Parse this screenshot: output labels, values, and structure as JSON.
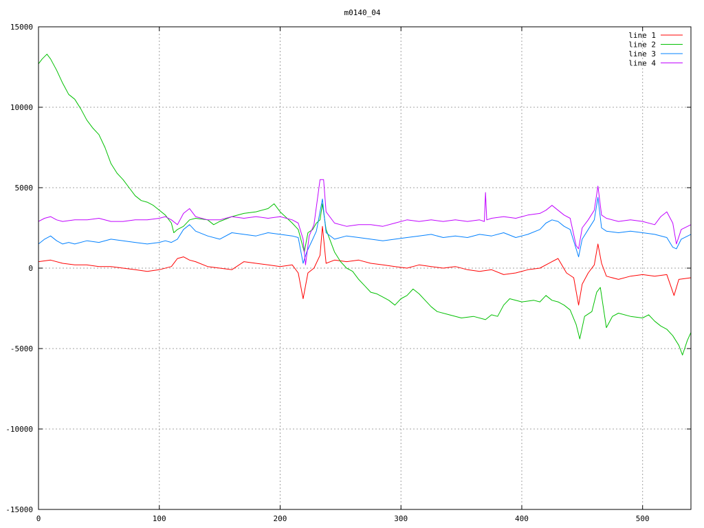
{
  "chart_data": {
    "type": "line",
    "title": "m0140_04",
    "xlim": [
      0,
      540
    ],
    "ylim": [
      -15000,
      15000
    ],
    "x_ticks": [
      0,
      100,
      200,
      300,
      400,
      500
    ],
    "y_ticks": [
      -15000,
      -10000,
      -5000,
      0,
      5000,
      10000,
      15000
    ],
    "grid": true,
    "legend_position": "top-right",
    "series": [
      {
        "name": "line 1",
        "color": "#ff0000",
        "points": [
          [
            0,
            400
          ],
          [
            10,
            500
          ],
          [
            20,
            300
          ],
          [
            30,
            200
          ],
          [
            40,
            200
          ],
          [
            50,
            100
          ],
          [
            60,
            100
          ],
          [
            70,
            0
          ],
          [
            80,
            -100
          ],
          [
            90,
            -200
          ],
          [
            100,
            -100
          ],
          [
            110,
            100
          ],
          [
            115,
            600
          ],
          [
            120,
            700
          ],
          [
            125,
            500
          ],
          [
            130,
            400
          ],
          [
            140,
            100
          ],
          [
            150,
            0
          ],
          [
            160,
            -100
          ],
          [
            170,
            400
          ],
          [
            180,
            300
          ],
          [
            190,
            200
          ],
          [
            200,
            100
          ],
          [
            210,
            200
          ],
          [
            215,
            -300
          ],
          [
            219,
            -1900
          ],
          [
            223,
            -300
          ],
          [
            228,
            0
          ],
          [
            233,
            800
          ],
          [
            235,
            2600
          ],
          [
            238,
            300
          ],
          [
            245,
            500
          ],
          [
            255,
            400
          ],
          [
            265,
            500
          ],
          [
            275,
            300
          ],
          [
            285,
            200
          ],
          [
            295,
            100
          ],
          [
            305,
            0
          ],
          [
            315,
            200
          ],
          [
            325,
            100
          ],
          [
            335,
            0
          ],
          [
            345,
            100
          ],
          [
            355,
            -100
          ],
          [
            365,
            -200
          ],
          [
            375,
            -100
          ],
          [
            385,
            -400
          ],
          [
            395,
            -300
          ],
          [
            405,
            -100
          ],
          [
            415,
            0
          ],
          [
            425,
            400
          ],
          [
            430,
            600
          ],
          [
            437,
            -300
          ],
          [
            443,
            -600
          ],
          [
            447,
            -2300
          ],
          [
            450,
            -1000
          ],
          [
            455,
            -300
          ],
          [
            460,
            200
          ],
          [
            463,
            1500
          ],
          [
            466,
            300
          ],
          [
            470,
            -500
          ],
          [
            480,
            -700
          ],
          [
            490,
            -500
          ],
          [
            500,
            -400
          ],
          [
            510,
            -500
          ],
          [
            520,
            -400
          ],
          [
            526,
            -1700
          ],
          [
            530,
            -700
          ],
          [
            540,
            -600
          ]
        ]
      },
      {
        "name": "line 2",
        "color": "#00c000",
        "points": [
          [
            0,
            12700
          ],
          [
            3,
            13000
          ],
          [
            7,
            13300
          ],
          [
            10,
            13000
          ],
          [
            15,
            12300
          ],
          [
            20,
            11500
          ],
          [
            25,
            10800
          ],
          [
            30,
            10500
          ],
          [
            35,
            9900
          ],
          [
            40,
            9200
          ],
          [
            45,
            8700
          ],
          [
            50,
            8300
          ],
          [
            55,
            7500
          ],
          [
            60,
            6500
          ],
          [
            65,
            5900
          ],
          [
            70,
            5500
          ],
          [
            75,
            5000
          ],
          [
            80,
            4500
          ],
          [
            85,
            4200
          ],
          [
            90,
            4100
          ],
          [
            95,
            3900
          ],
          [
            100,
            3600
          ],
          [
            105,
            3300
          ],
          [
            110,
            2800
          ],
          [
            112,
            2200
          ],
          [
            115,
            2400
          ],
          [
            120,
            2600
          ],
          [
            125,
            3000
          ],
          [
            130,
            3100
          ],
          [
            140,
            3000
          ],
          [
            145,
            2700
          ],
          [
            150,
            2900
          ],
          [
            160,
            3200
          ],
          [
            170,
            3400
          ],
          [
            180,
            3500
          ],
          [
            190,
            3700
          ],
          [
            195,
            4000
          ],
          [
            200,
            3500
          ],
          [
            210,
            2800
          ],
          [
            215,
            2400
          ],
          [
            220,
            1000
          ],
          [
            223,
            2200
          ],
          [
            227,
            2400
          ],
          [
            230,
            2800
          ],
          [
            233,
            3000
          ],
          [
            235,
            4000
          ],
          [
            238,
            2400
          ],
          [
            245,
            1000
          ],
          [
            250,
            400
          ],
          [
            255,
            0
          ],
          [
            260,
            -200
          ],
          [
            265,
            -700
          ],
          [
            270,
            -1100
          ],
          [
            275,
            -1500
          ],
          [
            280,
            -1600
          ],
          [
            285,
            -1800
          ],
          [
            290,
            -2000
          ],
          [
            295,
            -2300
          ],
          [
            300,
            -1900
          ],
          [
            305,
            -1700
          ],
          [
            310,
            -1300
          ],
          [
            315,
            -1600
          ],
          [
            320,
            -2000
          ],
          [
            325,
            -2400
          ],
          [
            330,
            -2700
          ],
          [
            340,
            -2900
          ],
          [
            350,
            -3100
          ],
          [
            360,
            -3000
          ],
          [
            370,
            -3200
          ],
          [
            375,
            -2900
          ],
          [
            380,
            -3000
          ],
          [
            385,
            -2300
          ],
          [
            390,
            -1900
          ],
          [
            400,
            -2100
          ],
          [
            410,
            -2000
          ],
          [
            415,
            -2100
          ],
          [
            420,
            -1700
          ],
          [
            425,
            -2000
          ],
          [
            430,
            -2100
          ],
          [
            435,
            -2300
          ],
          [
            440,
            -2600
          ],
          [
            445,
            -3500
          ],
          [
            448,
            -4400
          ],
          [
            452,
            -3000
          ],
          [
            458,
            -2700
          ],
          [
            462,
            -1500
          ],
          [
            465,
            -1200
          ],
          [
            470,
            -3700
          ],
          [
            475,
            -3000
          ],
          [
            480,
            -2800
          ],
          [
            490,
            -3000
          ],
          [
            500,
            -3100
          ],
          [
            505,
            -2900
          ],
          [
            510,
            -3300
          ],
          [
            515,
            -3600
          ],
          [
            520,
            -3800
          ],
          [
            525,
            -4200
          ],
          [
            530,
            -4800
          ],
          [
            533,
            -5400
          ],
          [
            537,
            -4500
          ],
          [
            540,
            -4000
          ]
        ]
      },
      {
        "name": "line 3",
        "color": "#0080ff",
        "points": [
          [
            0,
            1500
          ],
          [
            5,
            1800
          ],
          [
            10,
            2000
          ],
          [
            15,
            1700
          ],
          [
            20,
            1500
          ],
          [
            25,
            1600
          ],
          [
            30,
            1500
          ],
          [
            40,
            1700
          ],
          [
            50,
            1600
          ],
          [
            60,
            1800
          ],
          [
            70,
            1700
          ],
          [
            80,
            1600
          ],
          [
            90,
            1500
          ],
          [
            100,
            1600
          ],
          [
            105,
            1700
          ],
          [
            110,
            1600
          ],
          [
            115,
            1800
          ],
          [
            120,
            2400
          ],
          [
            125,
            2700
          ],
          [
            130,
            2300
          ],
          [
            140,
            2000
          ],
          [
            150,
            1800
          ],
          [
            160,
            2200
          ],
          [
            170,
            2100
          ],
          [
            180,
            2000
          ],
          [
            190,
            2200
          ],
          [
            200,
            2100
          ],
          [
            210,
            2000
          ],
          [
            215,
            1900
          ],
          [
            219,
            300
          ],
          [
            222,
            1000
          ],
          [
            227,
            1800
          ],
          [
            230,
            2300
          ],
          [
            235,
            4300
          ],
          [
            238,
            2200
          ],
          [
            245,
            1800
          ],
          [
            255,
            2000
          ],
          [
            265,
            1900
          ],
          [
            275,
            1800
          ],
          [
            285,
            1700
          ],
          [
            295,
            1800
          ],
          [
            305,
            1900
          ],
          [
            315,
            2000
          ],
          [
            325,
            2100
          ],
          [
            335,
            1900
          ],
          [
            345,
            2000
          ],
          [
            355,
            1900
          ],
          [
            365,
            2100
          ],
          [
            375,
            2000
          ],
          [
            385,
            2200
          ],
          [
            395,
            1900
          ],
          [
            405,
            2100
          ],
          [
            415,
            2400
          ],
          [
            420,
            2800
          ],
          [
            425,
            3000
          ],
          [
            430,
            2900
          ],
          [
            435,
            2600
          ],
          [
            440,
            2400
          ],
          [
            445,
            1200
          ],
          [
            447,
            700
          ],
          [
            450,
            1800
          ],
          [
            455,
            2400
          ],
          [
            460,
            3000
          ],
          [
            463,
            4400
          ],
          [
            466,
            2500
          ],
          [
            470,
            2300
          ],
          [
            480,
            2200
          ],
          [
            490,
            2300
          ],
          [
            500,
            2200
          ],
          [
            510,
            2100
          ],
          [
            520,
            1900
          ],
          [
            525,
            1300
          ],
          [
            528,
            1200
          ],
          [
            532,
            1800
          ],
          [
            540,
            2100
          ]
        ]
      },
      {
        "name": "line 4",
        "color": "#c000ff",
        "points": [
          [
            0,
            2900
          ],
          [
            5,
            3100
          ],
          [
            10,
            3200
          ],
          [
            15,
            3000
          ],
          [
            20,
            2900
          ],
          [
            30,
            3000
          ],
          [
            40,
            3000
          ],
          [
            50,
            3100
          ],
          [
            60,
            2900
          ],
          [
            70,
            2900
          ],
          [
            80,
            3000
          ],
          [
            90,
            3000
          ],
          [
            100,
            3100
          ],
          [
            105,
            3200
          ],
          [
            110,
            3000
          ],
          [
            115,
            2700
          ],
          [
            120,
            3400
          ],
          [
            125,
            3700
          ],
          [
            130,
            3200
          ],
          [
            140,
            3000
          ],
          [
            150,
            3000
          ],
          [
            160,
            3200
          ],
          [
            170,
            3100
          ],
          [
            180,
            3200
          ],
          [
            190,
            3100
          ],
          [
            200,
            3200
          ],
          [
            210,
            3000
          ],
          [
            215,
            2800
          ],
          [
            219,
            1800
          ],
          [
            221,
            200
          ],
          [
            224,
            2000
          ],
          [
            228,
            2700
          ],
          [
            233,
            5500
          ],
          [
            236,
            5500
          ],
          [
            238,
            3500
          ],
          [
            245,
            2800
          ],
          [
            255,
            2600
          ],
          [
            265,
            2700
          ],
          [
            275,
            2700
          ],
          [
            285,
            2600
          ],
          [
            295,
            2800
          ],
          [
            305,
            3000
          ],
          [
            315,
            2900
          ],
          [
            325,
            3000
          ],
          [
            335,
            2900
          ],
          [
            345,
            3000
          ],
          [
            355,
            2900
          ],
          [
            365,
            3000
          ],
          [
            369,
            2900
          ],
          [
            370,
            4700
          ],
          [
            371,
            3000
          ],
          [
            375,
            3100
          ],
          [
            385,
            3200
          ],
          [
            395,
            3100
          ],
          [
            405,
            3300
          ],
          [
            415,
            3400
          ],
          [
            420,
            3600
          ],
          [
            425,
            3900
          ],
          [
            430,
            3600
          ],
          [
            435,
            3300
          ],
          [
            440,
            3100
          ],
          [
            445,
            1400
          ],
          [
            447,
            1200
          ],
          [
            450,
            2500
          ],
          [
            455,
            3000
          ],
          [
            460,
            3600
          ],
          [
            463,
            5100
          ],
          [
            466,
            3300
          ],
          [
            470,
            3100
          ],
          [
            480,
            2900
          ],
          [
            490,
            3000
          ],
          [
            500,
            2900
          ],
          [
            510,
            2700
          ],
          [
            515,
            3200
          ],
          [
            520,
            3500
          ],
          [
            525,
            2800
          ],
          [
            528,
            1500
          ],
          [
            532,
            2400
          ],
          [
            540,
            2700
          ]
        ]
      }
    ]
  }
}
